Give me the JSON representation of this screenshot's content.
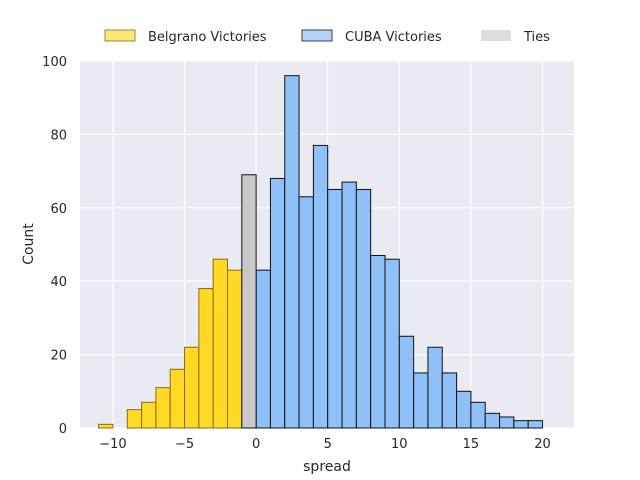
{
  "chart_data": {
    "type": "bar",
    "xlabel": "spread",
    "ylabel": "Count",
    "xlim": [
      -12.3,
      22.2
    ],
    "ylim": [
      0,
      100
    ],
    "x_ticks": [
      -10,
      -5,
      0,
      5,
      10,
      15,
      20
    ],
    "y_ticks": [
      0,
      20,
      40,
      60,
      80,
      100
    ],
    "grid": true,
    "legend_position": "top-center",
    "bin_width": 1,
    "series": [
      {
        "name": "Belgrano Victories",
        "color": "#FFD924",
        "edge_color": "#8A6A1A",
        "legend_color": "#FFE777",
        "bins": [
          {
            "x": -10.5,
            "count": 1
          },
          {
            "x": -8.5,
            "count": 5
          },
          {
            "x": -7.5,
            "count": 7
          },
          {
            "x": -6.5,
            "count": 11
          },
          {
            "x": -5.5,
            "count": 16
          },
          {
            "x": -4.5,
            "count": 22
          },
          {
            "x": -3.5,
            "count": 38
          },
          {
            "x": -2.5,
            "count": 46
          },
          {
            "x": -1.5,
            "count": 43
          }
        ]
      },
      {
        "name": "CUBA Victories",
        "color": "#8FC0F7",
        "edge_color": "#111111",
        "legend_color": "#B3D5FA",
        "bins": [
          {
            "x": 0.5,
            "count": 43
          },
          {
            "x": 1.5,
            "count": 68
          },
          {
            "x": 2.5,
            "count": 96
          },
          {
            "x": 3.5,
            "count": 63
          },
          {
            "x": 4.5,
            "count": 77
          },
          {
            "x": 5.5,
            "count": 65
          },
          {
            "x": 6.5,
            "count": 67
          },
          {
            "x": 7.5,
            "count": 65
          },
          {
            "x": 8.5,
            "count": 47
          },
          {
            "x": 9.5,
            "count": 46
          },
          {
            "x": 10.5,
            "count": 25
          },
          {
            "x": 11.5,
            "count": 15
          },
          {
            "x": 12.5,
            "count": 22
          },
          {
            "x": 13.5,
            "count": 15
          },
          {
            "x": 14.5,
            "count": 10
          },
          {
            "x": 15.5,
            "count": 7
          },
          {
            "x": 16.5,
            "count": 4
          },
          {
            "x": 17.5,
            "count": 3
          },
          {
            "x": 18.5,
            "count": 2
          },
          {
            "x": 19.5,
            "count": 2
          }
        ]
      },
      {
        "name": "Ties",
        "color": "#C8C8C8",
        "edge_color": "#111111",
        "legend_color": "#DCDCDC",
        "bins": [
          {
            "x": -0.5,
            "count": 69
          }
        ]
      }
    ]
  }
}
